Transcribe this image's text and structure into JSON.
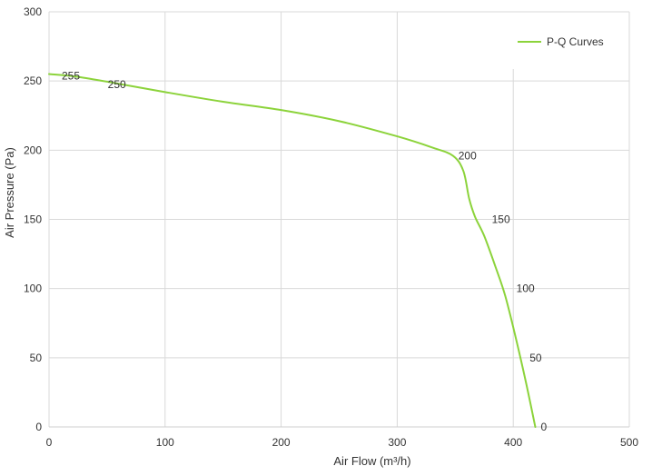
{
  "chart_data": {
    "type": "line",
    "xlabel": "Air Flow  (m³/h)",
    "ylabel": "Air Pressure  (Pa)",
    "xlim": [
      0,
      500
    ],
    "ylim": [
      0,
      300
    ],
    "x_ticks": [
      0,
      100,
      200,
      300,
      400,
      500
    ],
    "y_ticks": [
      0,
      50,
      100,
      150,
      200,
      250,
      300
    ],
    "grid": true,
    "legend": "top-right",
    "series": [
      {
        "name": "P-Q Curves",
        "color": "#8cd33b",
        "points": [
          {
            "x": 0,
            "y": 255
          },
          {
            "x": 25,
            "y": 253
          },
          {
            "x": 60,
            "y": 248
          },
          {
            "x": 100,
            "y": 242
          },
          {
            "x": 150,
            "y": 235
          },
          {
            "x": 200,
            "y": 229
          },
          {
            "x": 250,
            "y": 221
          },
          {
            "x": 300,
            "y": 210
          },
          {
            "x": 330,
            "y": 202
          },
          {
            "x": 348,
            "y": 196
          },
          {
            "x": 357,
            "y": 185
          },
          {
            "x": 362,
            "y": 165
          },
          {
            "x": 367,
            "y": 152
          },
          {
            "x": 375,
            "y": 138
          },
          {
            "x": 385,
            "y": 115
          },
          {
            "x": 393,
            "y": 95
          },
          {
            "x": 402,
            "y": 65
          },
          {
            "x": 411,
            "y": 32
          },
          {
            "x": 419,
            "y": 0
          }
        ]
      }
    ],
    "data_labels": [
      {
        "text": "255",
        "x": 0,
        "y": 255
      },
      {
        "text": "250",
        "x": 60,
        "y": 248
      },
      {
        "text": "200",
        "x": 348,
        "y": 196
      },
      {
        "text": "150",
        "x": 380,
        "y": 150
      },
      {
        "text": "100",
        "x": 398,
        "y": 100
      },
      {
        "text": "50",
        "x": 411,
        "y": 50
      },
      {
        "text": "0",
        "x": 419,
        "y": 0
      }
    ]
  }
}
